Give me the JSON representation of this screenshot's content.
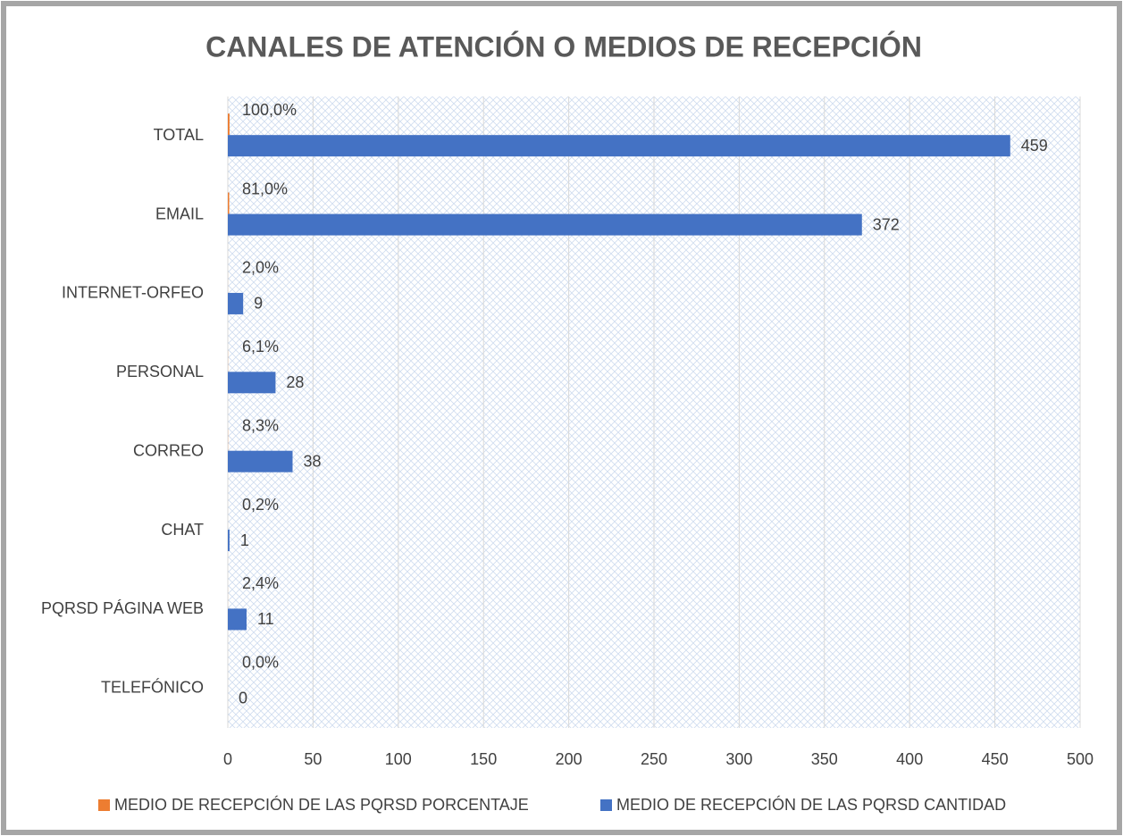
{
  "chart_data": {
    "type": "hbar",
    "title": "CANALES DE ATENCIÓN O MEDIOS DE RECEPCIÓN",
    "categories": [
      "TOTAL",
      "EMAIL",
      "INTERNET-ORFEO",
      "PERSONAL",
      "CORREO",
      "CHAT",
      "PQRSD PÁGINA WEB",
      "TELEFÓNICO"
    ],
    "series": [
      {
        "name": "MEDIO DE RECEPCIÓN DE LAS PQRSD PORCENTAJE",
        "color": "#ed7d31",
        "values": [
          1,
          0.81,
          0.02,
          0.061,
          0.083,
          0.002,
          0.024,
          0
        ],
        "value_labels": [
          "100,0%",
          "81,0%",
          "2,0%",
          "6,1%",
          "8,3%",
          "0,2%",
          "2,4%",
          "0,0%"
        ]
      },
      {
        "name": "MEDIO DE RECEPCIÓN DE LAS PQRSD CANTIDAD",
        "color": "#4472c4",
        "values": [
          459,
          372,
          9,
          28,
          38,
          1,
          11,
          0
        ]
      }
    ],
    "xlim": [
      0,
      500
    ],
    "xticks": [
      0,
      50,
      100,
      150,
      200,
      250,
      300,
      350,
      400,
      450,
      500
    ],
    "grid": true,
    "legend": "bottom"
  }
}
